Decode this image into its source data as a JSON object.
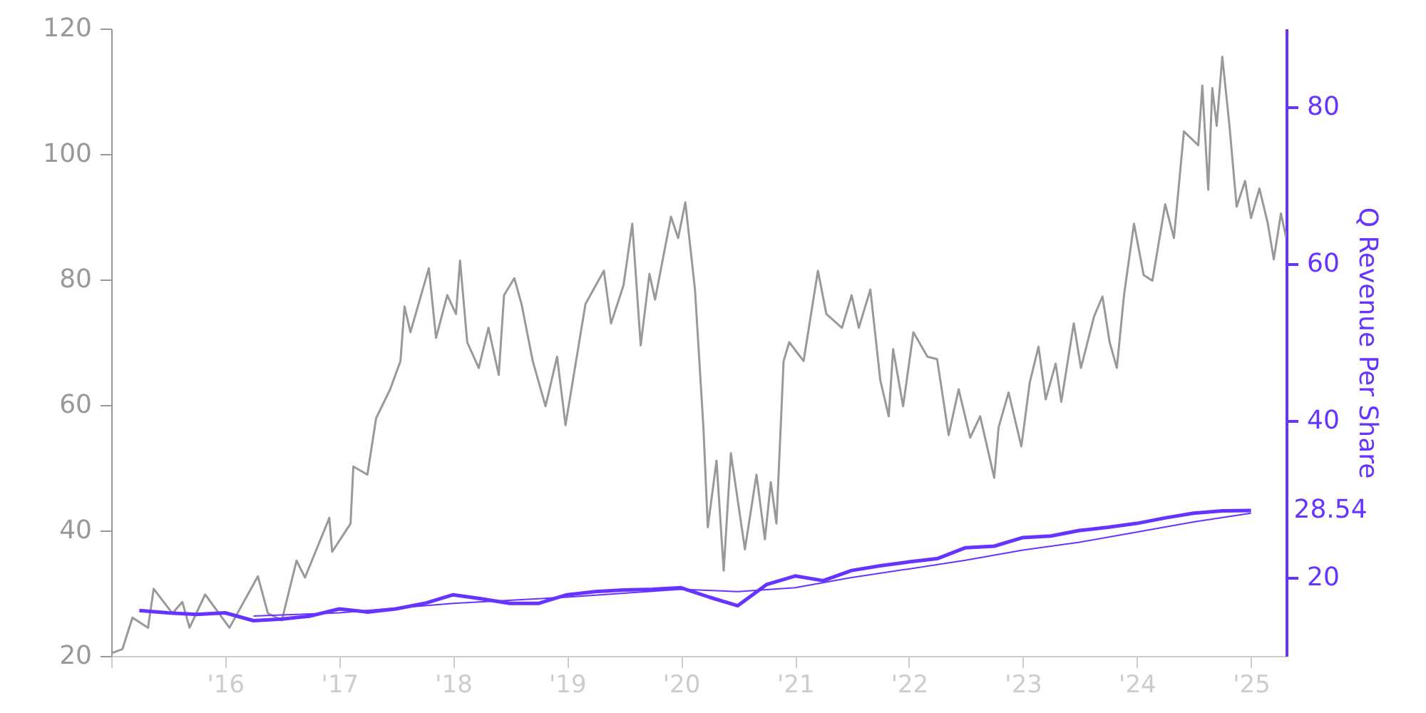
{
  "chart_data": {
    "type": "line",
    "y2label": "Q Revenue Per Share",
    "x": [
      "2015-01-05",
      "2015-02-06",
      "2015-03-10",
      "2015-04-29",
      "2015-05-17",
      "2015-07-16",
      "2015-08-17",
      "2015-09-09",
      "2015-10-29",
      "2016-01-15",
      "2016-04-15",
      "2016-05-17",
      "2016-07-01",
      "2016-08-17",
      "2016-09-13",
      "2016-11-30",
      "2016-12-09",
      "2017-02-06",
      "2017-02-15",
      "2017-04-01",
      "2017-04-29",
      "2017-06-13",
      "2017-07-16",
      "2017-07-29",
      "2017-08-17",
      "2017-10-15",
      "2017-11-07",
      "2017-12-13",
      "2018-01-10",
      "2018-01-23",
      "2018-02-15",
      "2018-03-24",
      "2018-04-24",
      "2018-05-27",
      "2018-06-13",
      "2018-07-16",
      "2018-08-08",
      "2018-09-13",
      "2018-10-24",
      "2018-11-30",
      "2018-12-27",
      "2019-03-01",
      "2019-04-29",
      "2019-05-22",
      "2019-07-01",
      "2019-07-29",
      "2019-08-25",
      "2019-09-22",
      "2019-10-10",
      "2019-11-30",
      "2019-12-23",
      "2020-01-15",
      "2020-02-15",
      "2020-03-13",
      "2020-03-27",
      "2020-04-24",
      "2020-05-17",
      "2020-06-09",
      "2020-07-24",
      "2020-08-30",
      "2020-09-26",
      "2020-10-15",
      "2020-11-02",
      "2020-11-25",
      "2020-12-13",
      "2021-01-28",
      "2021-03-15",
      "2021-04-11",
      "2021-05-31",
      "2021-07-01",
      "2021-07-24",
      "2021-08-30",
      "2021-10-01",
      "2021-10-28",
      "2021-11-11",
      "2021-12-13",
      "2022-01-15",
      "2022-03-01",
      "2022-04-01",
      "2022-05-08",
      "2022-06-09",
      "2022-07-16",
      "2022-08-17",
      "2022-10-01",
      "2022-10-15",
      "2022-11-16",
      "2022-12-27",
      "2023-01-23",
      "2023-02-20",
      "2023-03-15",
      "2023-04-16",
      "2023-05-04",
      "2023-06-13",
      "2023-07-06",
      "2023-08-17",
      "2023-09-13",
      "2023-10-06",
      "2023-10-29",
      "2023-11-21",
      "2023-12-23",
      "2024-01-23",
      "2024-02-20",
      "2024-04-01",
      "2024-04-29",
      "2024-05-31",
      "2024-07-16",
      "2024-07-29",
      "2024-08-17",
      "2024-08-30",
      "2024-09-13",
      "2024-10-01",
      "2024-10-24",
      "2024-11-16",
      "2024-12-13",
      "2025-01-01",
      "2025-01-28",
      "2025-02-24",
      "2025-03-15",
      "2025-04-07",
      "2025-04-24"
    ],
    "series": [
      {
        "color": "#999999",
        "values": [
          20.5,
          21.1,
          26.1,
          24.5,
          30.7,
          26.8,
          28.6,
          24.5,
          29.8,
          24.5,
          32.7,
          26.8,
          25.7,
          35.2,
          32.5,
          42.0,
          36.6,
          41.1,
          50.2,
          48.9,
          57.9,
          62.5,
          67.0,
          75.7,
          71.6,
          81.8,
          70.7,
          77.5,
          74.5,
          83.0,
          70.0,
          65.9,
          72.3,
          64.8,
          77.5,
          80.2,
          76.1,
          67.0,
          59.8,
          67.7,
          56.8,
          76.1,
          81.4,
          73.0,
          79.1,
          88.9,
          69.5,
          80.9,
          76.8,
          90.0,
          86.6,
          92.3,
          78.4,
          56.4,
          40.5,
          51.1,
          33.6,
          52.3,
          37.0,
          48.9,
          38.6,
          47.7,
          41.1,
          67.0,
          70.0,
          67.0,
          81.4,
          74.5,
          72.3,
          77.5,
          72.3,
          78.4,
          63.9,
          58.2,
          68.9,
          59.8,
          71.6,
          67.7,
          67.3,
          55.2,
          62.5,
          54.8,
          58.2,
          48.4,
          56.4,
          62.0,
          53.4,
          63.6,
          69.3,
          60.9,
          66.6,
          60.5,
          73.0,
          65.9,
          74.1,
          77.3,
          70.0,
          65.9,
          77.5,
          88.9,
          80.7,
          79.8,
          92.0,
          86.6,
          103.6,
          101.4,
          110.9,
          94.3,
          110.5,
          104.5,
          115.5,
          104.5,
          91.6,
          95.7,
          89.8,
          94.5,
          88.9,
          83.2,
          90.5,
          86.6
        ]
      },
      {
        "axis": "y2",
        "color": "#6633ff",
        "x": [
          "2015-04",
          "2015-07",
          "2015-10",
          "2016-01",
          "2016-04",
          "2016-07",
          "2016-10",
          "2017-01",
          "2017-04",
          "2017-07",
          "2017-10",
          "2018-01",
          "2018-04",
          "2018-07",
          "2018-10",
          "2019-01",
          "2019-04",
          "2019-07",
          "2019-10",
          "2020-01",
          "2020-04",
          "2020-07",
          "2020-10",
          "2021-01",
          "2021-04",
          "2021-07",
          "2021-10",
          "2022-01",
          "2022-04",
          "2022-07",
          "2022-10",
          "2023-01",
          "2023-04",
          "2023-07",
          "2023-10",
          "2024-01",
          "2024-04",
          "2024-07",
          "2024-10",
          "2025-01"
        ],
        "values": [
          15.8,
          15.5,
          15.3,
          15.5,
          14.5,
          14.7,
          15.1,
          16.0,
          15.6,
          16.0,
          16.7,
          17.8,
          17.3,
          16.7,
          16.7,
          17.8,
          18.2,
          18.4,
          18.5,
          18.7,
          17.5,
          16.4,
          19.1,
          20.2,
          19.6,
          20.9,
          21.5,
          22.0,
          22.4,
          23.8,
          24.0,
          25.1,
          25.3,
          26.0,
          26.4,
          26.9,
          27.6,
          28.2,
          28.5,
          28.54
        ],
        "value_labels": [
          null,
          null,
          null,
          null,
          null,
          null,
          null,
          null,
          null,
          null,
          null,
          null,
          null,
          null,
          null,
          null,
          null,
          null,
          null,
          null,
          null,
          null,
          null,
          null,
          null,
          null,
          null,
          null,
          null,
          null,
          null,
          null,
          null,
          null,
          null,
          null,
          null,
          null,
          null,
          "28.54"
        ]
      },
      {
        "axis": "y2",
        "color": "#6633ff",
        "x": [
          "2016-04",
          "2017-01",
          "2018-01",
          "2019-01",
          "2020-01",
          "2020-07",
          "2021-01",
          "2021-07",
          "2022-01",
          "2022-07",
          "2023-01",
          "2023-07",
          "2024-01",
          "2024-07",
          "2025-01"
        ],
        "values": [
          15.1,
          15.5,
          16.7,
          17.5,
          18.5,
          18.2,
          18.7,
          20.0,
          21.1,
          22.2,
          23.5,
          24.5,
          25.8,
          27.1,
          28.2
        ]
      }
    ],
    "xlim": [
      "2015-01-01",
      "2025-04-24"
    ],
    "xticks": [
      {
        "value": "2015-01-01",
        "label": null
      },
      {
        "value": "2016-01-01",
        "label": "'16"
      },
      {
        "value": "2017-01-01",
        "label": "'17"
      },
      {
        "value": "2018-01-01",
        "label": "'18"
      },
      {
        "value": "2019-01-01",
        "label": "'19"
      },
      {
        "value": "2020-01-01",
        "label": "'20"
      },
      {
        "value": "2021-01-01",
        "label": "'21"
      },
      {
        "value": "2022-01-01",
        "label": "'22"
      },
      {
        "value": "2023-01-01",
        "label": "'23"
      },
      {
        "value": "2024-01-01",
        "label": "'24"
      },
      {
        "value": "2025-01-01",
        "label": "'25"
      }
    ],
    "ylim": [
      20,
      120
    ],
    "yticks": [
      20,
      40,
      60,
      80,
      100,
      120
    ],
    "y2lim": [
      10,
      90
    ],
    "y2ticks": [
      20,
      40,
      60,
      80
    ],
    "grid": false,
    "marker": "none",
    "line_style": "solid"
  }
}
